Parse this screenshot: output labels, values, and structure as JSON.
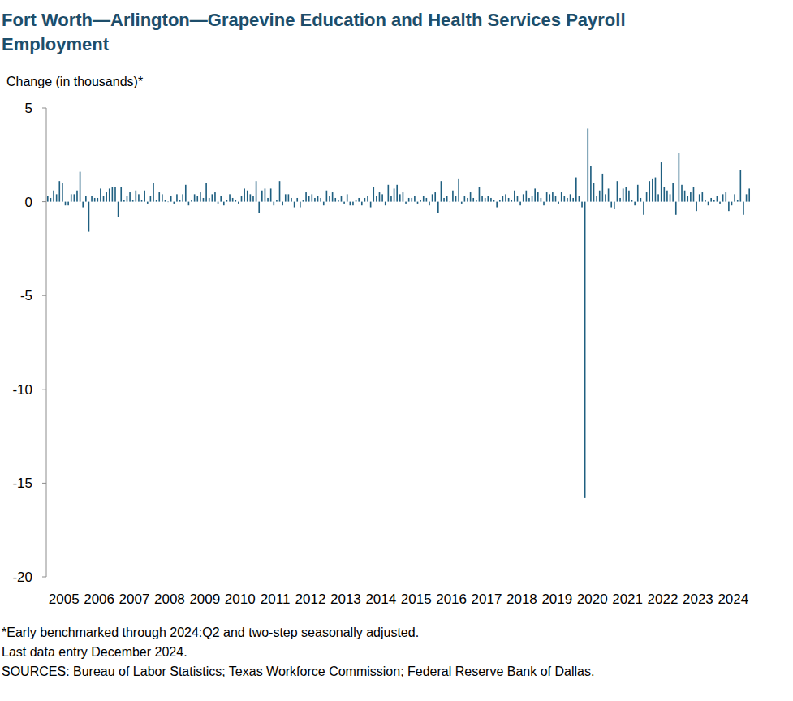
{
  "chart_data": {
    "type": "bar",
    "title": "Fort Worth—Arlington—Grapevine Education and Health Services Payroll Employment",
    "y_label": "Change (in thousands)*",
    "annotations": [
      "*Early benchmarked through 2024:Q2 and two-step seasonally adjusted.",
      "Last data entry December 2024.",
      "SOURCES: Bureau of Labor Statistics; Texas Workforce Commission; Federal Reserve Bank of Dallas."
    ],
    "color": "#1f5f80",
    "ylim": [
      -20,
      5
    ],
    "yticks": [
      -20,
      -15,
      -10,
      -5,
      0,
      5
    ],
    "categories": [
      "2005",
      null,
      null,
      null,
      null,
      null,
      null,
      null,
      null,
      null,
      null,
      null,
      "2006",
      null,
      null,
      null,
      null,
      null,
      null,
      null,
      null,
      null,
      null,
      null,
      "2007",
      null,
      null,
      null,
      null,
      null,
      null,
      null,
      null,
      null,
      null,
      null,
      "2008",
      null,
      null,
      null,
      null,
      null,
      null,
      null,
      null,
      null,
      null,
      null,
      "2009",
      null,
      null,
      null,
      null,
      null,
      null,
      null,
      null,
      null,
      null,
      null,
      "2010",
      null,
      null,
      null,
      null,
      null,
      null,
      null,
      null,
      null,
      null,
      null,
      "2011",
      null,
      null,
      null,
      null,
      null,
      null,
      null,
      null,
      null,
      null,
      null,
      "2012",
      null,
      null,
      null,
      null,
      null,
      null,
      null,
      null,
      null,
      null,
      null,
      "2013",
      null,
      null,
      null,
      null,
      null,
      null,
      null,
      null,
      null,
      null,
      null,
      "2014",
      null,
      null,
      null,
      null,
      null,
      null,
      null,
      null,
      null,
      null,
      null,
      "2015",
      null,
      null,
      null,
      null,
      null,
      null,
      null,
      null,
      null,
      null,
      null,
      "2016",
      null,
      null,
      null,
      null,
      null,
      null,
      null,
      null,
      null,
      null,
      null,
      "2017",
      null,
      null,
      null,
      null,
      null,
      null,
      null,
      null,
      null,
      null,
      null,
      "2018",
      null,
      null,
      null,
      null,
      null,
      null,
      null,
      null,
      null,
      null,
      null,
      "2019",
      null,
      null,
      null,
      null,
      null,
      null,
      null,
      null,
      null,
      null,
      null,
      "2020",
      null,
      null,
      null,
      null,
      null,
      null,
      null,
      null,
      null,
      null,
      null,
      "2021",
      null,
      null,
      null,
      null,
      null,
      null,
      null,
      null,
      null,
      null,
      null,
      "2022",
      null,
      null,
      null,
      null,
      null,
      null,
      null,
      null,
      null,
      null,
      null,
      "2023",
      null,
      null,
      null,
      null,
      null,
      null,
      null,
      null,
      null,
      null,
      null,
      "2024",
      null,
      null,
      null,
      null,
      null,
      null,
      null,
      null,
      null,
      null,
      null
    ],
    "values": [
      0.3,
      0.2,
      0.6,
      0.4,
      1.1,
      1.0,
      -0.2,
      -0.2,
      0.4,
      0.4,
      0.6,
      1.6,
      -0.3,
      0.3,
      -1.6,
      0.3,
      0.2,
      0.2,
      0.7,
      0.3,
      0.5,
      0.7,
      0.8,
      0.8,
      -0.8,
      0.8,
      0.1,
      0.3,
      0.5,
      0.1,
      0.6,
      0.4,
      0.1,
      0.6,
      -0.1,
      0.3,
      1.0,
      0.1,
      0.5,
      0.4,
      0.1,
      0.0,
      0.3,
      -0.1,
      0.4,
      0.1,
      0.4,
      0.9,
      -0.2,
      0.1,
      0.4,
      0.3,
      0.5,
      0.2,
      1.0,
      0.2,
      0.4,
      0.5,
      -0.1,
      0.3,
      -0.2,
      0.1,
      0.4,
      0.2,
      0.1,
      -0.1,
      0.3,
      0.7,
      0.6,
      0.4,
      0.3,
      1.1,
      -0.6,
      0.6,
      0.7,
      0.2,
      0.7,
      -0.2,
      0.1,
      1.1,
      -0.2,
      0.4,
      0.4,
      0.2,
      -0.3,
      0.2,
      -0.3,
      0.1,
      0.5,
      0.3,
      0.4,
      0.2,
      0.3,
      0.2,
      -0.2,
      0.6,
      0.3,
      0.5,
      0.2,
      0.1,
      0.3,
      -0.1,
      0.4,
      -0.2,
      -0.2,
      0.1,
      0.2,
      -0.2,
      0.2,
      0.3,
      -0.3,
      0.8,
      0.3,
      0.5,
      0.4,
      -0.2,
      0.9,
      0.3,
      0.7,
      0.9,
      0.4,
      0.5,
      -0.1,
      0.2,
      0.2,
      0.3,
      -0.1,
      0.1,
      0.3,
      0.2,
      -0.2,
      0.4,
      0.5,
      -0.6,
      1.1,
      0.2,
      0.3,
      0.0,
      0.6,
      0.3,
      1.2,
      -0.1,
      0.3,
      0.2,
      0.5,
      0.2,
      0.1,
      0.8,
      0.3,
      0.2,
      0.3,
      0.2,
      0.1,
      -0.3,
      0.1,
      0.3,
      0.4,
      0.2,
      0.1,
      0.6,
      0.3,
      -0.2,
      0.4,
      0.6,
      0.2,
      0.3,
      0.7,
      0.5,
      0.2,
      -0.2,
      0.5,
      0.4,
      0.5,
      0.3,
      -0.1,
      0.5,
      0.3,
      0.2,
      0.4,
      0.2,
      1.3,
      0.3,
      -0.3,
      -15.8,
      3.9,
      1.9,
      1.0,
      0.3,
      0.6,
      1.5,
      0.4,
      0.7,
      -0.3,
      -0.4,
      1.1,
      0.2,
      0.7,
      0.8,
      0.6,
      0.1,
      -0.2,
      0.9,
      0.2,
      -0.7,
      0.5,
      1.1,
      1.2,
      1.3,
      0.4,
      2.1,
      0.8,
      0.6,
      0.4,
      1.0,
      -0.7,
      2.6,
      0.9,
      0.6,
      0.3,
      0.5,
      0.8,
      -0.5,
      0.4,
      0.5,
      0.1,
      -0.2,
      0.2,
      0.1,
      0.3,
      -0.1,
      0.4,
      0.5,
      -0.5,
      -0.2,
      0.4,
      0.1,
      1.7,
      -0.7,
      0.4,
      0.7
    ]
  }
}
